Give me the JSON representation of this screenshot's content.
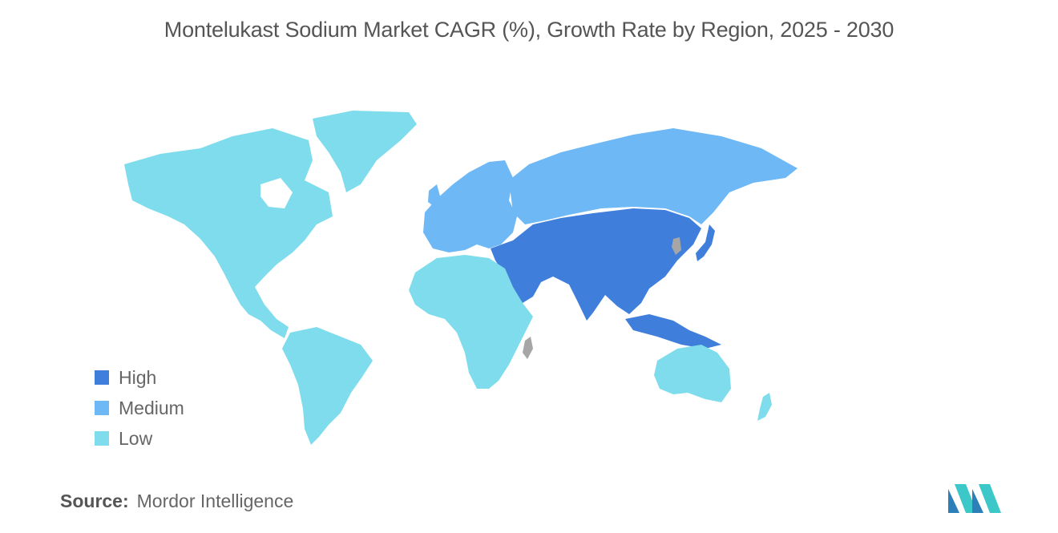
{
  "title": "Montelukast Sodium Market CAGR (%), Growth Rate by Region, 2025 - 2030",
  "legend": [
    {
      "label": "High",
      "color": "#3f7fdb"
    },
    {
      "label": "Medium",
      "color": "#6db8f5"
    },
    {
      "label": "Low",
      "color": "#7fdcec"
    }
  ],
  "no_data_color": "#a6a6a6",
  "source": {
    "label": "Source:",
    "value": "Mordor Intelligence"
  },
  "regions": [
    {
      "name": "North America",
      "level": "Low"
    },
    {
      "name": "South America",
      "level": "Low"
    },
    {
      "name": "Europe",
      "level": "Medium"
    },
    {
      "name": "Russia",
      "level": "Medium"
    },
    {
      "name": "Africa",
      "level": "Low"
    },
    {
      "name": "Middle East",
      "level": "High"
    },
    {
      "name": "Asia Pacific",
      "level": "High"
    },
    {
      "name": "Australia & New Zealand",
      "level": "Low"
    }
  ]
}
